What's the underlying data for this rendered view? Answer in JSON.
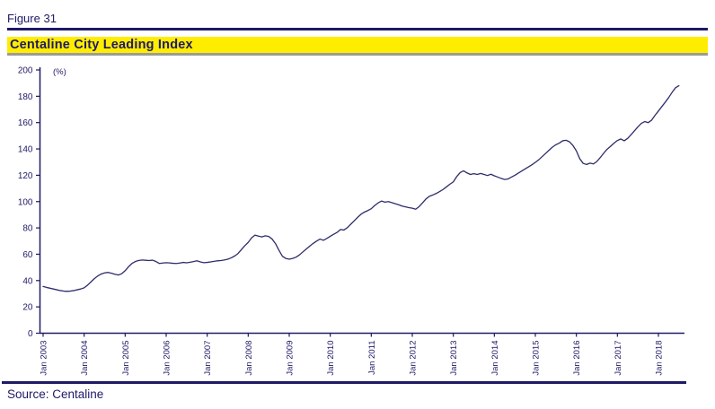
{
  "header": {
    "figure_label": "Figure 31",
    "title": "Centaline City Leading Index"
  },
  "footer": {
    "source": "Source: Centaline"
  },
  "colors": {
    "navy_text": "#1f1a66",
    "axis": "#1f1a66",
    "series_line": "#2d2d6b",
    "title_bg": "#ffed00",
    "title_border_gray": "#9b9b9b"
  },
  "chart_data": {
    "type": "line",
    "title": "Centaline City Leading Index",
    "unit_label": "(%)",
    "xlabel": "",
    "ylabel": "",
    "ylim": [
      0,
      200
    ],
    "y_ticks": [
      0,
      20,
      40,
      60,
      80,
      100,
      120,
      140,
      160,
      180,
      200
    ],
    "x_tick_labels": [
      "Jan 2003",
      "Jan 2004",
      "Jan 2005",
      "Jan 2006",
      "Jan 2007",
      "Jan 2008",
      "Jan 2009",
      "Jan 2010",
      "Jan 2011",
      "Jan 2012",
      "Jan 2013",
      "Jan 2014",
      "Jan 2015",
      "Jan 2016",
      "Jan 2017",
      "Jan 2018"
    ],
    "frequency": "monthly",
    "x_range": [
      "Jan 2003",
      "Jul 2018"
    ],
    "grid": false,
    "legend": "none",
    "series": [
      {
        "name": "Centaline City Leading Index",
        "values": [
          35.5,
          34.8,
          34.2,
          33.6,
          33.0,
          32.4,
          32.0,
          31.8,
          32.0,
          32.4,
          33.0,
          33.6,
          34.5,
          36.5,
          39.0,
          41.5,
          43.5,
          45.0,
          45.8,
          46.2,
          45.6,
          44.8,
          44.2,
          45.2,
          47.5,
          50.5,
          53.0,
          54.5,
          55.3,
          55.6,
          55.4,
          55.2,
          55.5,
          54.5,
          53.0,
          53.3,
          53.6,
          53.4,
          53.1,
          53.0,
          53.3,
          53.8,
          53.5,
          53.9,
          54.4,
          55.0,
          54.2,
          53.6,
          53.8,
          54.2,
          54.6,
          55.0,
          55.2,
          55.6,
          56.2,
          57.2,
          58.6,
          60.5,
          63.5,
          66.5,
          69.0,
          72.5,
          74.5,
          73.8,
          73.2,
          74.0,
          73.5,
          71.5,
          68.0,
          63.0,
          58.5,
          56.8,
          56.2,
          56.8,
          57.8,
          59.5,
          61.8,
          64.0,
          66.2,
          68.2,
          70.0,
          71.5,
          70.6,
          72.0,
          73.6,
          75.2,
          76.6,
          78.8,
          78.4,
          80.2,
          82.8,
          85.4,
          88.0,
          90.4,
          92.0,
          93.2,
          94.6,
          97.0,
          99.0,
          100.4,
          99.6,
          100.0,
          99.2,
          98.4,
          97.6,
          96.6,
          96.0,
          95.4,
          95.0,
          94.2,
          96.2,
          99.0,
          102.0,
          104.0,
          105.0,
          106.2,
          107.6,
          109.2,
          111.2,
          113.2,
          115.0,
          119.0,
          122.0,
          123.4,
          121.8,
          120.6,
          121.2,
          120.6,
          121.4,
          120.6,
          119.8,
          120.8,
          119.6,
          118.6,
          117.6,
          116.8,
          117.2,
          118.6,
          120.0,
          121.6,
          123.2,
          124.8,
          126.4,
          128.0,
          129.8,
          131.8,
          134.2,
          136.6,
          139.0,
          141.4,
          143.2,
          144.4,
          146.2,
          146.6,
          145.4,
          142.6,
          138.5,
          132.5,
          129.0,
          128.2,
          129.2,
          128.6,
          130.5,
          133.5,
          136.8,
          139.8,
          142.0,
          144.4,
          146.4,
          147.6,
          146.2,
          148.0,
          150.8,
          153.8,
          156.8,
          159.4,
          160.8,
          160.0,
          161.8,
          165.5,
          168.8,
          172.2,
          175.5,
          179.0,
          183.0,
          186.5,
          188.0
        ]
      }
    ]
  }
}
